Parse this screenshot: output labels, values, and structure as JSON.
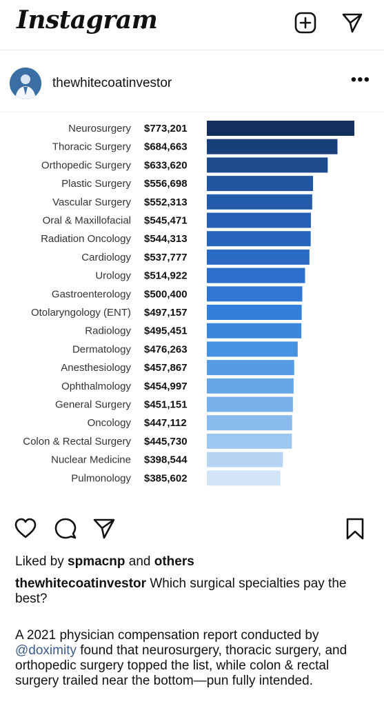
{
  "header": {
    "logo": "Instagram",
    "chevron": "⌄",
    "new_post_icon": "plus-square-icon",
    "direct_icon": "paper-plane-icon"
  },
  "post": {
    "username": "thewhitecoatinvestor",
    "more": "•••",
    "likes_prefix": "Liked by ",
    "likes_user": "spmacnp",
    "likes_and": " and ",
    "likes_others": "others",
    "caption_user": "thewhitecoatinvestor",
    "caption_text": " Which surgical specialties pay the best?",
    "desc_part1": "A 2021 physician compensation report conducted by ",
    "desc_mention": "@doximity",
    "desc_part2": " found that neurosurgery, thoracic surgery, and orthopedic surgery topped the list, while colon & rectal surgery trailed near the bottom—pun fully intended."
  },
  "chart_data": {
    "type": "bar",
    "orientation": "horizontal",
    "categories": [
      "Neurosurgery",
      "Thoracic Surgery",
      "Orthopedic Surgery",
      "Plastic Surgery",
      "Vascular Surgery",
      "Oral & Maxillofacial",
      "Radiation Oncology",
      "Cardiology",
      "Urology",
      "Gastroenterology",
      "Otolaryngology (ENT)",
      "Radiology",
      "Dermatology",
      "Anesthesiology",
      "Ophthalmology",
      "General Surgery",
      "Oncology",
      "Colon & Rectal Surgery",
      "Nuclear Medicine",
      "Pulmonology"
    ],
    "labels": [
      "$773,201",
      "$684,663",
      "$633,620",
      "$556,698",
      "$552,313",
      "$545,471",
      "$544,313",
      "$537,777",
      "$514,922",
      "$500,400",
      "$497,157",
      "$495,451",
      "$476,263",
      "$457,867",
      "$454,997",
      "$451,151",
      "$447,112",
      "$445,730",
      "$398,544",
      "$385,602"
    ],
    "values": [
      773201,
      684663,
      633620,
      556698,
      552313,
      545471,
      544313,
      537777,
      514922,
      500400,
      497157,
      495451,
      476263,
      457867,
      454997,
      451151,
      447112,
      445730,
      398544,
      385602
    ],
    "colors": [
      "#132f5c",
      "#193f7a",
      "#1e4b8d",
      "#22559f",
      "#245bab",
      "#2660b4",
      "#2865bd",
      "#2a6ac4",
      "#2d70cb",
      "#3077d2",
      "#337ed8",
      "#3b87dc",
      "#4691e0",
      "#579ce3",
      "#67a7e6",
      "#78b1e9",
      "#89bcec",
      "#9cc7ef",
      "#b5d5f2",
      "#d2e5f6"
    ]
  },
  "actions": {
    "like_icon": "heart-icon",
    "comment_icon": "comment-icon",
    "share_icon": "paper-plane-icon",
    "save_icon": "bookmark-icon"
  }
}
